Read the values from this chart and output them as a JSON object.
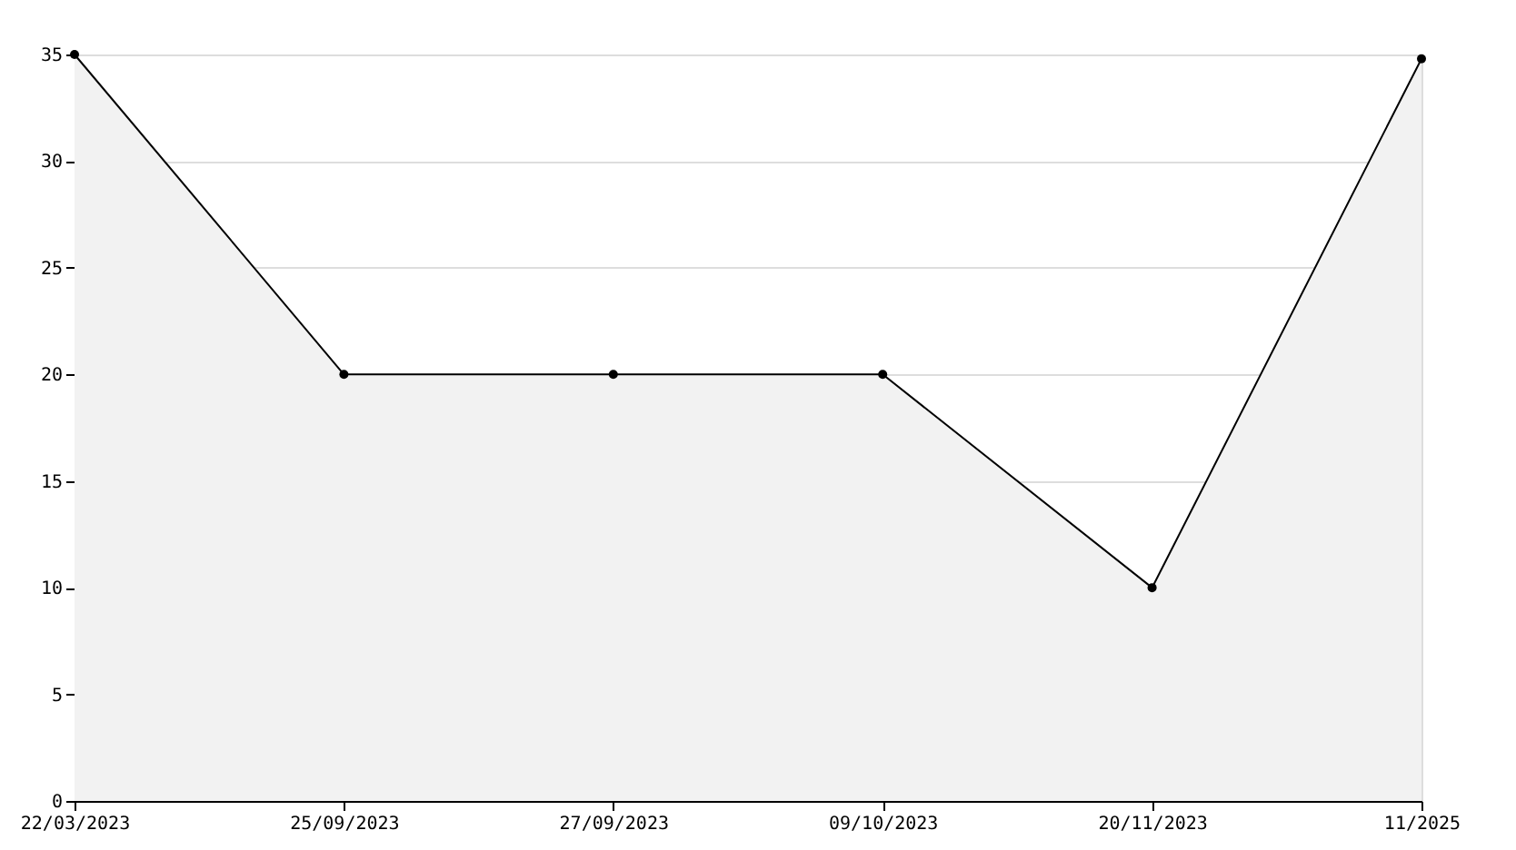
{
  "chart_data": {
    "type": "area",
    "categories": [
      "22/03/2023",
      "25/09/2023",
      "27/09/2023",
      "09/10/2023",
      "20/11/2023",
      "11/2025"
    ],
    "series": [
      {
        "color": "#000000",
        "values": [
          35,
          20,
          20,
          20,
          10,
          34.8
        ]
      }
    ],
    "ylim": [
      0,
      35
    ],
    "yticks": [
      0,
      5,
      10,
      15,
      20,
      25,
      30,
      35
    ],
    "grid": "y",
    "marker": "circle",
    "line_style": "solid"
  }
}
